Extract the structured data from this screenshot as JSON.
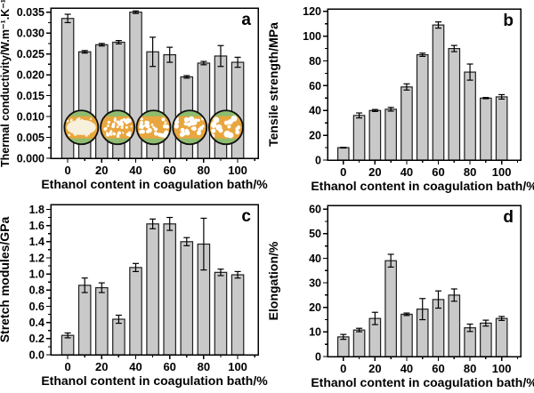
{
  "figure": {
    "background": "#ffffff",
    "description": "Four-panel bar chart figure of fiber properties vs ethanol content in coagulation bath"
  },
  "style": {
    "bar_fill": "#c9c9c9",
    "bar_stroke": "#1f1f1f",
    "axis_color": "#000000",
    "text_color": "#000000",
    "error_bar_color": "#000000"
  },
  "chart_data": [
    {
      "type": "bar",
      "panel_label": "a",
      "xlabel": "Ethanol content in coagulation bath/%",
      "ylabel": "Thermal conductivity/W.m⁻¹.K⁻¹",
      "categories": [
        0,
        10,
        20,
        30,
        40,
        50,
        60,
        70,
        80,
        90,
        100
      ],
      "values": [
        0.0335,
        0.0255,
        0.0272,
        0.0278,
        0.035,
        0.0255,
        0.0248,
        0.0195,
        0.0228,
        0.0245,
        0.023
      ],
      "errors": [
        0.001,
        0.0003,
        0.0003,
        0.0004,
        0.0003,
        0.0035,
        0.0018,
        0.0003,
        0.0004,
        0.0025,
        0.0012
      ],
      "xlim": [
        -10,
        112
      ],
      "xticks": [
        0,
        20,
        40,
        60,
        80,
        100
      ],
      "xminor_step": 10,
      "ylim": [
        0,
        0.036
      ],
      "ytick_step": 0.005,
      "ytick_max": 0.035,
      "ytick_decimals": 3,
      "yminor_step": 0.0025,
      "grid": false,
      "legend": null,
      "insets": {
        "type": "cross-section micrograph circles overlaying bars",
        "cy": 0.0074,
        "radius_px": 19,
        "ring_color": "#101010",
        "matrix_color": "#e9a63e",
        "band_color": "#8fbc6e",
        "pore_color": "#ffffff",
        "cream_color": "#f7f0da",
        "circles": [
          {
            "x": 8.0,
            "style": "dense-blob",
            "dots": 14,
            "dot_r": 1.3
          },
          {
            "x": 29.3,
            "style": "pores",
            "dots": 44,
            "dot_r": 1.5
          },
          {
            "x": 50.5,
            "style": "pores",
            "dots": 34,
            "dot_r": 1.9
          },
          {
            "x": 71.8,
            "style": "pores",
            "dots": 26,
            "dot_r": 2.2
          },
          {
            "x": 93.1,
            "style": "pores",
            "dots": 17,
            "dot_r": 2.8
          }
        ]
      }
    },
    {
      "type": "bar",
      "panel_label": "b",
      "xlabel": "Ethanol content in coagulation bath/%",
      "ylabel": "Tensile strength/MPa",
      "categories": [
        0,
        10,
        20,
        30,
        40,
        50,
        60,
        70,
        80,
        90,
        100
      ],
      "values": [
        10,
        36,
        40,
        41,
        59,
        85,
        109,
        90,
        71,
        50,
        51
      ],
      "errors": [
        0.3,
        2.0,
        0.8,
        1.5,
        2.5,
        1.3,
        2.5,
        2.5,
        6.5,
        0.5,
        1.8
      ],
      "xlim": [
        -10,
        112
      ],
      "xticks": [
        0,
        20,
        40,
        60,
        80,
        100
      ],
      "xminor_step": 10,
      "ylim": [
        0,
        122
      ],
      "ytick_step": 20,
      "ytick_max": 120,
      "ytick_decimals": 0,
      "yminor_step": 10,
      "grid": false,
      "legend": null,
      "insets": null
    },
    {
      "type": "bar",
      "panel_label": "c",
      "xlabel": "Ethanol content in coagulation bath/%",
      "ylabel": "Stretch modules/GPa",
      "categories": [
        0,
        10,
        20,
        30,
        40,
        50,
        60,
        70,
        80,
        90,
        100
      ],
      "values": [
        0.24,
        0.86,
        0.83,
        0.44,
        1.08,
        1.62,
        1.62,
        1.4,
        1.37,
        1.02,
        0.99
      ],
      "errors": [
        0.03,
        0.09,
        0.06,
        0.05,
        0.05,
        0.06,
        0.08,
        0.05,
        0.32,
        0.04,
        0.04
      ],
      "xlim": [
        -10,
        112
      ],
      "xticks": [
        0,
        20,
        40,
        60,
        80,
        100
      ],
      "xminor_step": 10,
      "ylim": [
        0,
        1.86
      ],
      "ytick_step": 0.2,
      "ytick_max": 1.8,
      "ytick_decimals": 1,
      "yminor_step": 0.1,
      "grid": false,
      "legend": null,
      "insets": null
    },
    {
      "type": "bar",
      "panel_label": "d",
      "xlabel": "Ethanol content in coagulation bath/%",
      "ylabel": "Elongation/%",
      "categories": [
        0,
        10,
        20,
        30,
        40,
        50,
        60,
        70,
        80,
        90,
        100
      ],
      "values": [
        8.0,
        10.8,
        15.5,
        39.0,
        17.2,
        19.3,
        23.2,
        25.0,
        11.7,
        13.6,
        15.5
      ],
      "errors": [
        1.0,
        0.7,
        2.5,
        2.6,
        0.5,
        4.3,
        3.5,
        2.5,
        1.5,
        1.2,
        0.8
      ],
      "xlim": [
        -10,
        112
      ],
      "xticks": [
        0,
        20,
        40,
        60,
        80,
        100
      ],
      "xminor_step": 10,
      "ylim": [
        0,
        61.5
      ],
      "ytick_step": 10,
      "ytick_max": 60,
      "ytick_decimals": 0,
      "yminor_step": 5,
      "grid": false,
      "legend": null,
      "insets": null
    }
  ]
}
